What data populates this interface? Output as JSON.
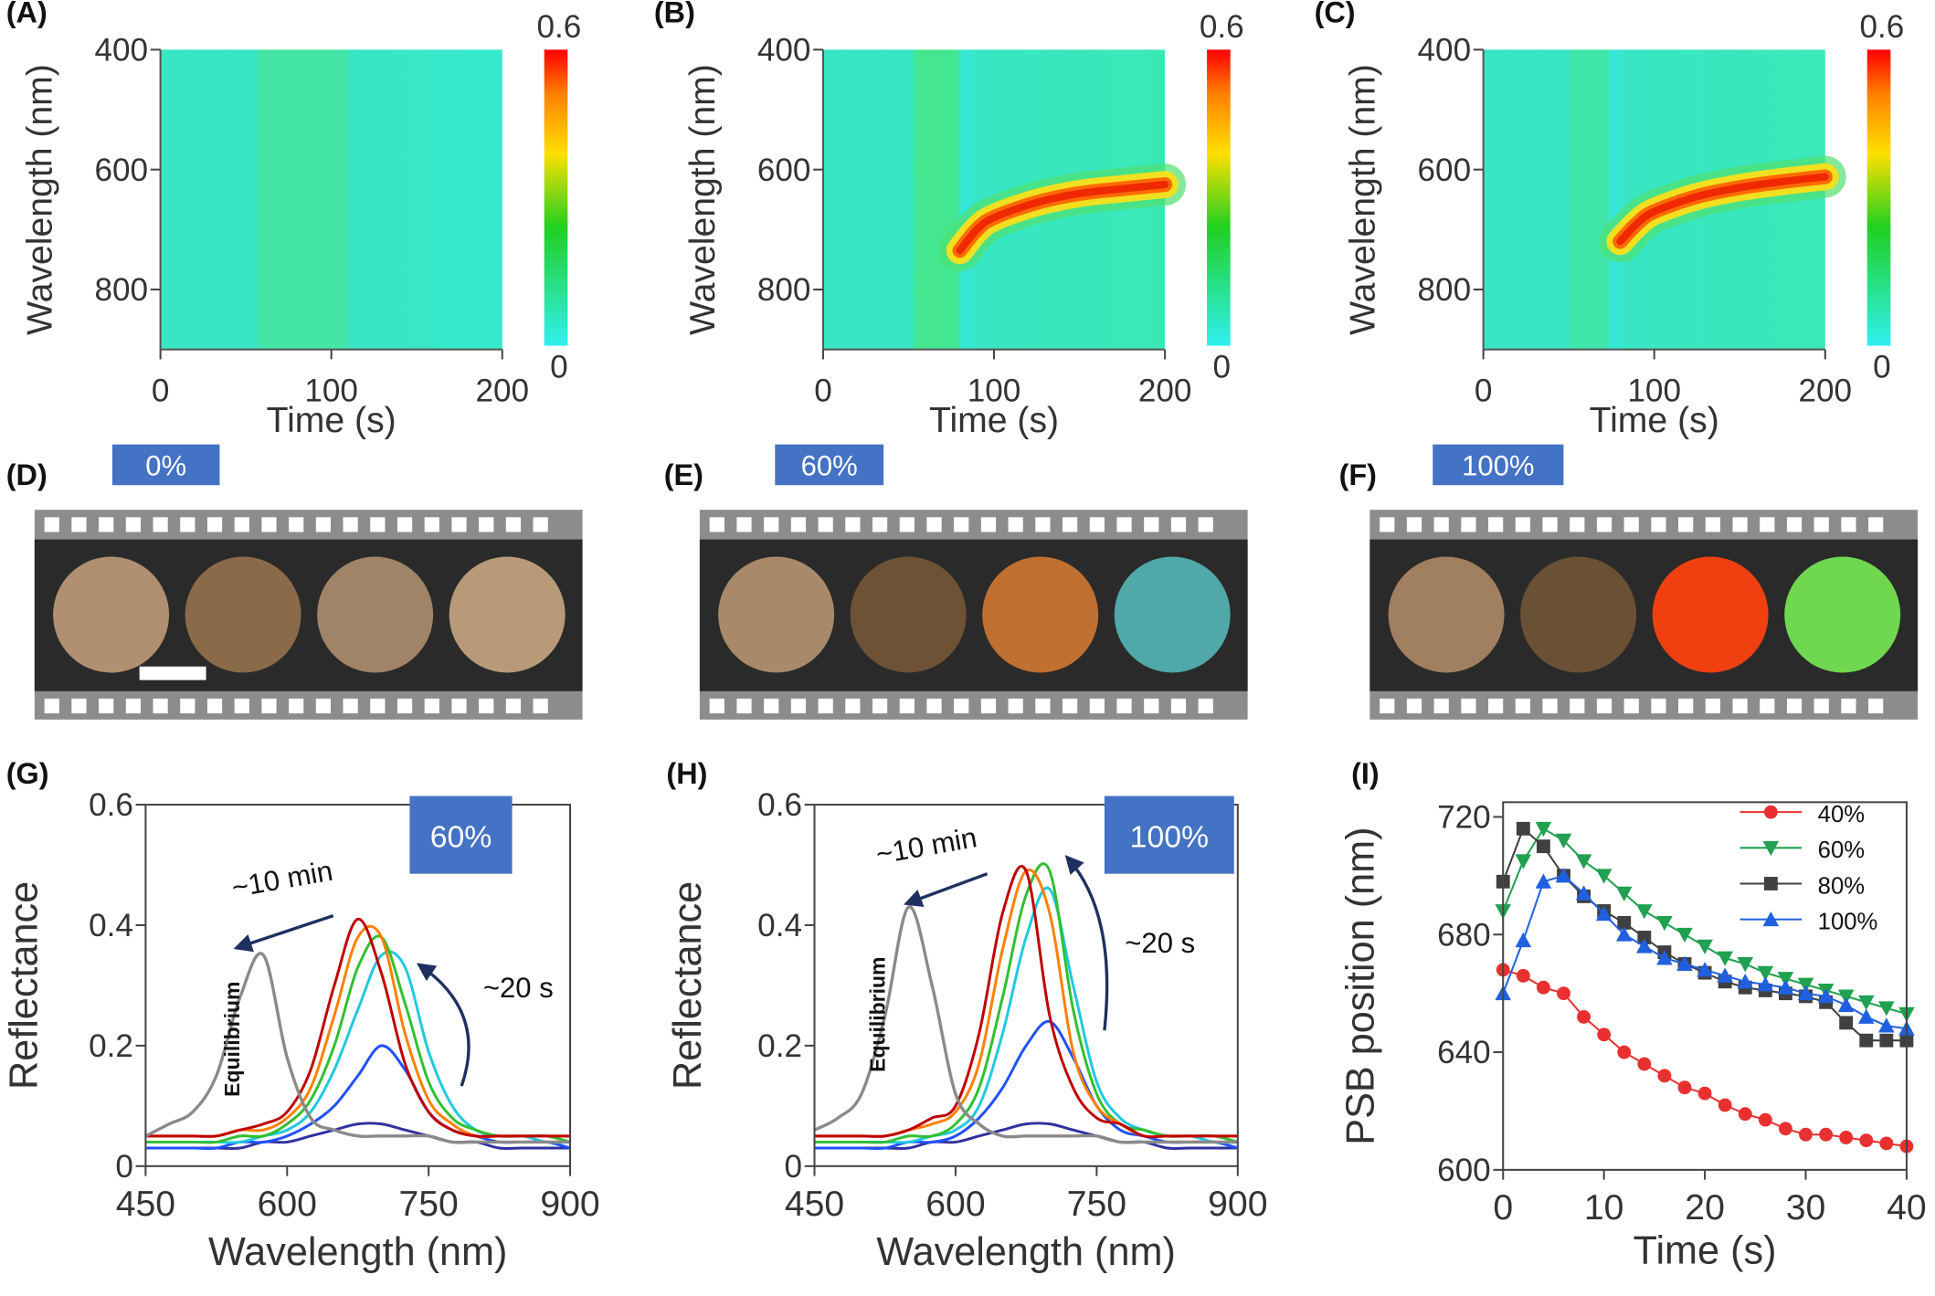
{
  "chart_data": [
    {
      "type": "heatmap",
      "panel_label": "(A)",
      "xlabel": "Time (s)",
      "ylabel": "Wavelength (nm)",
      "xlim": [
        0,
        200
      ],
      "xticks": [
        0,
        100,
        200
      ],
      "ylim": [
        900,
        400
      ],
      "yticks": [
        400,
        600,
        800
      ],
      "colorbar": {
        "lim": [
          0,
          0.6
        ],
        "ticks": [
          0,
          0.6
        ]
      }
    },
    {
      "type": "heatmap",
      "panel_label": "(B)",
      "xlabel": "Time (s)",
      "ylabel": "Wavelength (nm)",
      "xlim": [
        0,
        200
      ],
      "xticks": [
        0,
        100,
        200
      ],
      "ylim": [
        900,
        400
      ],
      "yticks": [
        400,
        600,
        800
      ],
      "colorbar": {
        "lim": [
          0,
          0.6
        ],
        "ticks": [
          0,
          0.6
        ]
      },
      "ridge": {
        "x": [
          80,
          90,
          100,
          125,
          150,
          175,
          200
        ],
        "y": [
          735,
          700,
          680,
          655,
          640,
          632,
          625
        ]
      }
    },
    {
      "type": "heatmap",
      "panel_label": "(C)",
      "xlabel": "Time (s)",
      "ylabel": "Wavelength (nm)",
      "xlim": [
        0,
        200
      ],
      "xticks": [
        0,
        100,
        200
      ],
      "ylim": [
        900,
        400
      ],
      "yticks": [
        400,
        600,
        800
      ],
      "colorbar": {
        "lim": [
          0,
          0.6
        ],
        "ticks": [
          0,
          0.6
        ]
      },
      "ridge": {
        "x": [
          80,
          90,
          100,
          125,
          150,
          175,
          200
        ],
        "y": [
          720,
          690,
          670,
          645,
          630,
          620,
          612
        ]
      }
    },
    {
      "type": "line",
      "panel_label": "(G)",
      "xlabel": "Wavelength (nm)",
      "ylabel": "Reflectance",
      "xlim": [
        450,
        900
      ],
      "xticks": [
        450,
        600,
        750,
        900
      ],
      "ylim": [
        0,
        0.6
      ],
      "yticks": [
        0,
        0.2,
        0.4,
        0.6
      ],
      "inset_label": "60%",
      "slow_label": "~10 min",
      "fast_label": "~20 s",
      "equilibrium_label": "Equilibrium",
      "x": [
        450,
        475,
        500,
        525,
        550,
        575,
        600,
        625,
        650,
        675,
        700,
        725,
        750,
        775,
        800,
        825,
        850,
        875,
        900
      ],
      "series": [
        {
          "color": "#3030a0",
          "values": [
            0.03,
            0.03,
            0.03,
            0.03,
            0.03,
            0.04,
            0.04,
            0.05,
            0.06,
            0.07,
            0.07,
            0.06,
            0.05,
            0.04,
            0.04,
            0.03,
            0.03,
            0.03,
            0.03
          ]
        },
        {
          "color": "#2050ff",
          "values": [
            0.03,
            0.03,
            0.03,
            0.03,
            0.04,
            0.04,
            0.05,
            0.07,
            0.1,
            0.15,
            0.2,
            0.16,
            0.09,
            0.06,
            0.05,
            0.04,
            0.04,
            0.04,
            0.03
          ]
        },
        {
          "color": "#20c8e0",
          "values": [
            0.04,
            0.04,
            0.04,
            0.04,
            0.04,
            0.05,
            0.06,
            0.09,
            0.16,
            0.26,
            0.35,
            0.33,
            0.19,
            0.1,
            0.06,
            0.05,
            0.05,
            0.04,
            0.04
          ]
        },
        {
          "color": "#30c030",
          "values": [
            0.04,
            0.04,
            0.04,
            0.04,
            0.05,
            0.05,
            0.07,
            0.11,
            0.2,
            0.33,
            0.38,
            0.27,
            0.14,
            0.08,
            0.06,
            0.05,
            0.05,
            0.05,
            0.04
          ]
        },
        {
          "color": "#ff8000",
          "values": [
            0.05,
            0.05,
            0.05,
            0.05,
            0.06,
            0.06,
            0.08,
            0.13,
            0.25,
            0.38,
            0.38,
            0.22,
            0.11,
            0.07,
            0.05,
            0.05,
            0.05,
            0.05,
            0.05
          ]
        },
        {
          "color": "#c00000",
          "values": [
            0.05,
            0.05,
            0.05,
            0.05,
            0.06,
            0.07,
            0.09,
            0.16,
            0.3,
            0.41,
            0.32,
            0.17,
            0.09,
            0.06,
            0.05,
            0.05,
            0.05,
            0.05,
            0.05
          ]
        },
        {
          "color": "#8a8a8a",
          "values": [
            0.05,
            0.07,
            0.09,
            0.15,
            0.28,
            0.35,
            0.18,
            0.08,
            0.06,
            0.05,
            0.05,
            0.05,
            0.05,
            0.04,
            0.04,
            0.04,
            0.04,
            0.04,
            0.04
          ]
        }
      ]
    },
    {
      "type": "line",
      "panel_label": "(H)",
      "xlabel": "Wavelength (nm)",
      "ylabel": "Reflectance",
      "xlim": [
        450,
        900
      ],
      "xticks": [
        450,
        600,
        750,
        900
      ],
      "ylim": [
        0,
        0.6
      ],
      "yticks": [
        0,
        0.2,
        0.4,
        0.6
      ],
      "inset_label": "100%",
      "slow_label": "~10 min",
      "fast_label": "~20 s",
      "equilibrium_label": "Equilibrium",
      "x": [
        450,
        475,
        500,
        525,
        550,
        575,
        600,
        625,
        650,
        675,
        700,
        725,
        750,
        775,
        800,
        825,
        850,
        875,
        900
      ],
      "series": [
        {
          "color": "#3030a0",
          "values": [
            0.03,
            0.03,
            0.03,
            0.03,
            0.03,
            0.04,
            0.04,
            0.05,
            0.06,
            0.07,
            0.07,
            0.06,
            0.05,
            0.04,
            0.04,
            0.03,
            0.03,
            0.03,
            0.03
          ]
        },
        {
          "color": "#2050ff",
          "values": [
            0.03,
            0.03,
            0.03,
            0.03,
            0.04,
            0.04,
            0.05,
            0.08,
            0.13,
            0.2,
            0.24,
            0.18,
            0.1,
            0.06,
            0.05,
            0.04,
            0.04,
            0.04,
            0.03
          ]
        },
        {
          "color": "#20c8e0",
          "values": [
            0.04,
            0.04,
            0.04,
            0.04,
            0.04,
            0.05,
            0.06,
            0.1,
            0.22,
            0.38,
            0.46,
            0.3,
            0.14,
            0.08,
            0.06,
            0.05,
            0.05,
            0.04,
            0.04
          ]
        },
        {
          "color": "#30c030",
          "values": [
            0.04,
            0.04,
            0.04,
            0.04,
            0.05,
            0.05,
            0.07,
            0.13,
            0.28,
            0.45,
            0.49,
            0.26,
            0.12,
            0.07,
            0.06,
            0.05,
            0.05,
            0.05,
            0.04
          ]
        },
        {
          "color": "#ff8000",
          "values": [
            0.05,
            0.05,
            0.05,
            0.05,
            0.06,
            0.07,
            0.09,
            0.17,
            0.36,
            0.49,
            0.42,
            0.19,
            0.1,
            0.07,
            0.05,
            0.05,
            0.05,
            0.05,
            0.05
          ]
        },
        {
          "color": "#c00000",
          "values": [
            0.05,
            0.05,
            0.05,
            0.05,
            0.06,
            0.08,
            0.1,
            0.22,
            0.42,
            0.49,
            0.25,
            0.13,
            0.08,
            0.07,
            0.05,
            0.05,
            0.05,
            0.05,
            0.05
          ]
        },
        {
          "color": "#8a8a8a",
          "values": [
            0.06,
            0.08,
            0.12,
            0.25,
            0.43,
            0.3,
            0.12,
            0.07,
            0.05,
            0.05,
            0.05,
            0.05,
            0.05,
            0.04,
            0.04,
            0.04,
            0.04,
            0.04,
            0.04
          ]
        }
      ]
    },
    {
      "type": "scatter",
      "panel_label": "(I)",
      "xlabel": "Time (s)",
      "ylabel": "PSB position (nm)",
      "xlim": [
        0,
        40
      ],
      "xticks": [
        0,
        10,
        20,
        30,
        40
      ],
      "ylim": [
        600,
        725
      ],
      "yticks": [
        600,
        640,
        680,
        720
      ],
      "legend": "upper right",
      "x": [
        0,
        2,
        4,
        6,
        8,
        10,
        12,
        14,
        16,
        18,
        20,
        22,
        24,
        26,
        28,
        30,
        32,
        34,
        36,
        38,
        40
      ],
      "series": [
        {
          "name": "40%",
          "color": "#e83030",
          "marker": "circle",
          "values": [
            668,
            666,
            662,
            660,
            652,
            646,
            640,
            636,
            632,
            628,
            626,
            622,
            619,
            617,
            614,
            612,
            612,
            611,
            610,
            609,
            608
          ]
        },
        {
          "name": "60%",
          "color": "#20a050",
          "marker": "triangle-down",
          "values": [
            688,
            705,
            716,
            712,
            705,
            700,
            694,
            688,
            684,
            680,
            676,
            672,
            670,
            667,
            665,
            663,
            661,
            659,
            657,
            655,
            653
          ]
        },
        {
          "name": "80%",
          "color": "#404040",
          "marker": "square",
          "values": [
            698,
            716,
            710,
            700,
            693,
            688,
            684,
            679,
            674,
            670,
            667,
            664,
            662,
            661,
            660,
            659,
            657,
            650,
            644,
            644,
            644
          ]
        },
        {
          "name": "100%",
          "color": "#2060e0",
          "marker": "triangle-up",
          "values": [
            660,
            678,
            698,
            700,
            694,
            687,
            680,
            676,
            672,
            670,
            668,
            666,
            664,
            663,
            662,
            660,
            659,
            656,
            652,
            649,
            648
          ]
        }
      ]
    }
  ],
  "film_strips": [
    {
      "panel_label": "(D)",
      "label": "0%"
    },
    {
      "panel_label": "(E)",
      "label": "60%"
    },
    {
      "panel_label": "(F)",
      "label": "100%"
    }
  ]
}
